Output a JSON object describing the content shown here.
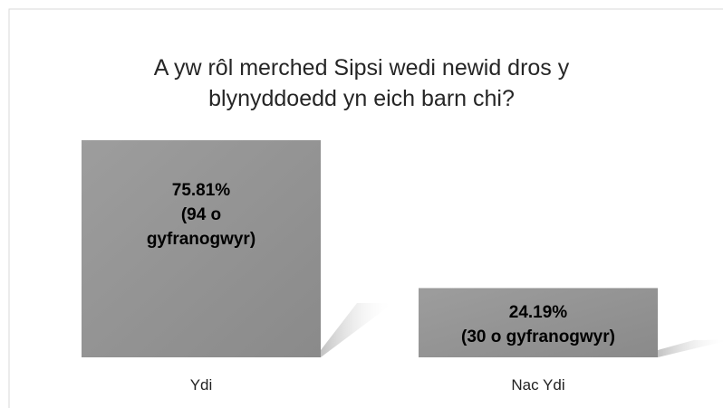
{
  "chart_data": {
    "type": "bar",
    "title": "A yw rôl merched Sipsi wedi newid dros y blynyddoedd yn eich barn chi?",
    "categories": [
      "Ydi",
      "Nac Ydi"
    ],
    "values": [
      75.81,
      24.19
    ],
    "value_labels": [
      "75.81%\n(94 o\ngyfranogwyr)",
      "24.19%\n(30 o gyfranogwyr)"
    ],
    "color": "#959595"
  }
}
